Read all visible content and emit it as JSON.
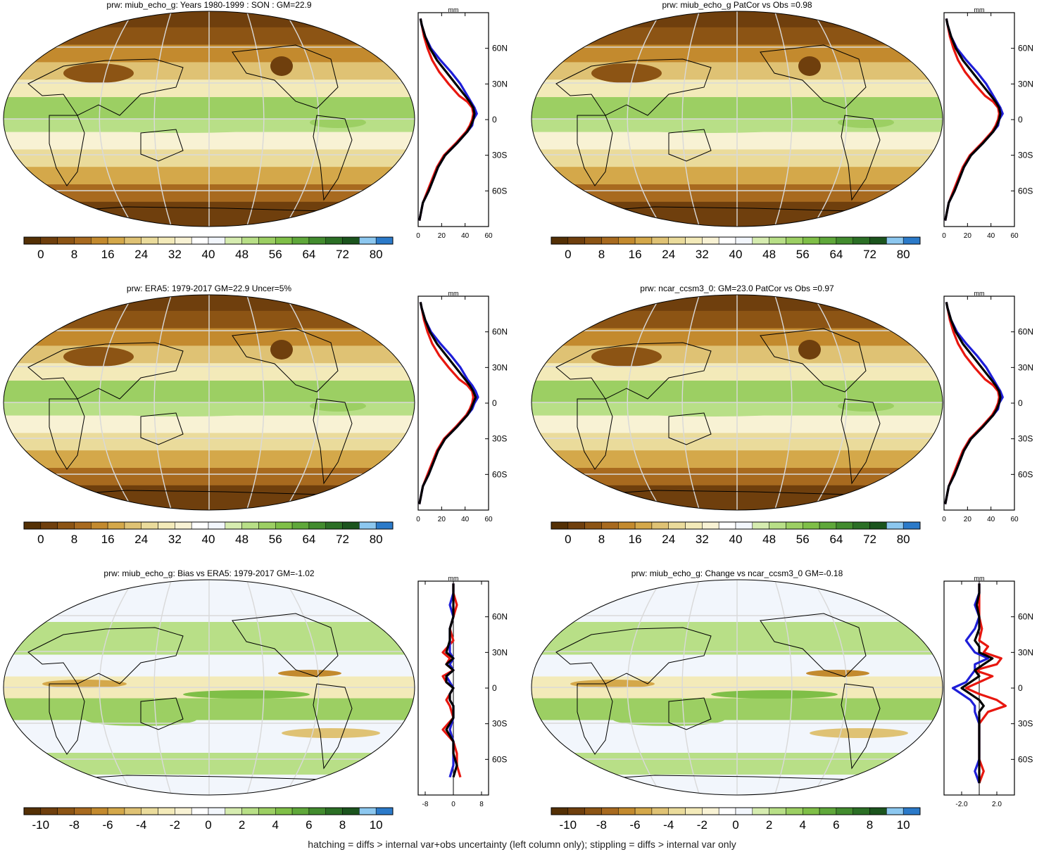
{
  "palette": {
    "precip": [
      "#543005",
      "#6f3f0d",
      "#8c5414",
      "#a86a1f",
      "#c38a2e",
      "#d4a84a",
      "#dfc274",
      "#eadb9b",
      "#f3eab9",
      "#f8f2d4",
      "#ffffff",
      "#f2f6fc",
      "#d6ecb0",
      "#b8df87",
      "#9ccf63",
      "#7fbf47",
      "#5fa83a",
      "#428c2e",
      "#2b6f25",
      "#1b541d",
      "#8cc7ef",
      "#2b7ac9"
    ],
    "outline": "#000000",
    "graticule": "#d9d9d9"
  },
  "colorbar_ticks_field": [
    "0",
    "8",
    "16",
    "24",
    "32",
    "40",
    "48",
    "56",
    "64",
    "72",
    "80"
  ],
  "colorbar_ticks_diff": [
    "-10",
    "-8",
    "-6",
    "-4",
    "-2",
    "0",
    "2",
    "4",
    "6",
    "8",
    "10"
  ],
  "zonal_units": "mm",
  "zonal_lat_labels": [
    "60N",
    "30N",
    "0",
    "30S",
    "60S"
  ],
  "zonal_x_ticks_field": [
    "0",
    "20",
    "40",
    "60"
  ],
  "zonal_x_ticks_bias": [
    "-8",
    "0",
    "8"
  ],
  "zonal_x_ticks_change": [
    "-2.0",
    "2.0"
  ],
  "titles": {
    "p1": "prw: miub_echo_g: Years 1980-1999 : SON : GM=22.9",
    "p2": "prw: miub_echo_g PatCor vs Obs =0.98",
    "p3": "prw: ERA5: 1979-2017 GM=22.9 Uncer=5%",
    "p4": "prw: ncar_ccsm3_0: GM=23.0 PatCor vs Obs =0.97",
    "p5": "prw: miub_echo_g: Bias vs ERA5: 1979-2017  GM=-1.02",
    "p6": "prw: miub_echo_g: Change vs ncar_ccsm3_0 GM=-0.18"
  },
  "footer": "hatching = diffs > internal var+obs uncertainty (left column only); stippling = diffs > internal var only",
  "chart_data": [
    {
      "type": "line",
      "panel": "miub_echo_g SON zonal mean",
      "xlabel": "mm",
      "xlim": [
        0,
        60
      ],
      "ylim": [
        -90,
        90
      ],
      "x_ticks": [
        "0",
        "20",
        "40",
        "60"
      ],
      "y_ticks": [
        "60N",
        "30N",
        "0",
        "30S",
        "60S"
      ],
      "lat": [
        -85,
        -70,
        -60,
        -50,
        -40,
        -30,
        -20,
        -10,
        -5,
        0,
        5,
        10,
        15,
        20,
        30,
        40,
        50,
        60,
        70,
        80,
        85
      ],
      "series": [
        {
          "color": "#e8170f",
          "values": [
            1,
            4,
            8,
            12,
            16,
            22,
            32,
            41,
            44,
            46,
            47,
            46,
            42,
            35,
            26,
            18,
            12,
            8,
            5,
            3,
            2
          ]
        },
        {
          "color": "#1e1ed8",
          "values": [
            1,
            4,
            9,
            13,
            17,
            23,
            33,
            42,
            46,
            47,
            50,
            48,
            45,
            42,
            36,
            28,
            19,
            11,
            6,
            3,
            2
          ]
        },
        {
          "color": "#000000",
          "values": [
            1,
            4,
            9,
            13,
            17,
            23,
            33,
            42,
            45,
            47,
            48,
            47,
            44,
            40,
            32,
            24,
            16,
            10,
            6,
            3,
            2
          ]
        }
      ]
    },
    {
      "type": "line",
      "panel": "miub_echo_g PatCor zonal mean",
      "xlabel": "mm",
      "xlim": [
        0,
        60
      ],
      "ylim": [
        -90,
        90
      ],
      "x_ticks": [
        "0",
        "20",
        "40",
        "60"
      ],
      "y_ticks": [
        "60N",
        "30N",
        "0",
        "30S",
        "60S"
      ],
      "lat": [
        -85,
        -70,
        -60,
        -50,
        -40,
        -30,
        -20,
        -10,
        -5,
        0,
        5,
        10,
        15,
        20,
        30,
        40,
        50,
        60,
        70,
        80,
        85
      ],
      "series": [
        {
          "color": "#e8170f",
          "values": [
            1,
            4,
            8,
            12,
            16,
            22,
            32,
            41,
            44,
            46,
            47,
            46,
            42,
            35,
            26,
            18,
            12,
            8,
            5,
            3,
            2
          ]
        },
        {
          "color": "#1e1ed8",
          "values": [
            1,
            4,
            9,
            13,
            17,
            23,
            33,
            42,
            46,
            47,
            50,
            48,
            45,
            42,
            36,
            28,
            19,
            11,
            6,
            3,
            2
          ]
        },
        {
          "color": "#000000",
          "values": [
            1,
            4,
            9,
            13,
            17,
            23,
            33,
            42,
            45,
            47,
            48,
            47,
            44,
            40,
            32,
            24,
            16,
            10,
            6,
            3,
            2
          ]
        }
      ]
    },
    {
      "type": "line",
      "panel": "ERA5 zonal mean",
      "xlabel": "mm",
      "xlim": [
        0,
        60
      ],
      "ylim": [
        -90,
        90
      ],
      "x_ticks": [
        "0",
        "20",
        "40",
        "60"
      ],
      "y_ticks": [
        "60N",
        "30N",
        "0",
        "30S",
        "60S"
      ],
      "lat": [
        -85,
        -70,
        -60,
        -50,
        -40,
        -30,
        -20,
        -10,
        -5,
        0,
        5,
        10,
        15,
        20,
        30,
        40,
        50,
        60,
        70,
        80,
        85
      ],
      "series": [
        {
          "color": "#e8170f",
          "values": [
            1,
            4,
            8,
            12,
            16,
            22,
            32,
            41,
            44,
            46,
            47,
            46,
            42,
            35,
            26,
            18,
            12,
            8,
            5,
            3,
            2
          ]
        },
        {
          "color": "#1e1ed8",
          "values": [
            1,
            4,
            9,
            13,
            17,
            23,
            33,
            42,
            46,
            48,
            51,
            49,
            46,
            42,
            36,
            28,
            19,
            11,
            6,
            3,
            2
          ]
        },
        {
          "color": "#000000",
          "values": [
            1,
            4,
            9,
            13,
            17,
            23,
            33,
            42,
            45,
            47,
            49,
            47,
            44,
            40,
            32,
            24,
            16,
            10,
            6,
            3,
            2
          ]
        }
      ]
    },
    {
      "type": "line",
      "panel": "ncar_ccsm3_0 zonal mean",
      "xlabel": "mm",
      "xlim": [
        0,
        60
      ],
      "ylim": [
        -90,
        90
      ],
      "x_ticks": [
        "0",
        "20",
        "40",
        "60"
      ],
      "y_ticks": [
        "60N",
        "30N",
        "0",
        "30S",
        "60S"
      ],
      "lat": [
        -85,
        -70,
        -60,
        -50,
        -40,
        -30,
        -20,
        -10,
        -5,
        0,
        5,
        10,
        15,
        20,
        30,
        40,
        50,
        60,
        70,
        80,
        85
      ],
      "series": [
        {
          "color": "#e8170f",
          "values": [
            1,
            4,
            8,
            12,
            16,
            22,
            32,
            41,
            44,
            46,
            47,
            46,
            42,
            35,
            26,
            18,
            12,
            8,
            5,
            3,
            2
          ]
        },
        {
          "color": "#1e1ed8",
          "values": [
            1,
            4,
            9,
            13,
            17,
            23,
            33,
            42,
            46,
            47,
            50,
            48,
            45,
            42,
            36,
            28,
            19,
            11,
            6,
            3,
            2
          ]
        },
        {
          "color": "#000000",
          "values": [
            1,
            4,
            9,
            13,
            17,
            23,
            33,
            42,
            45,
            47,
            48,
            47,
            44,
            40,
            32,
            24,
            16,
            10,
            6,
            3,
            2
          ]
        }
      ]
    },
    {
      "type": "line",
      "panel": "Bias vs ERA5 zonal mean",
      "xlabel": "mm",
      "xlim": [
        -10,
        10
      ],
      "ylim": [
        -90,
        90
      ],
      "x_ticks": [
        "-8",
        "0",
        "8"
      ],
      "y_ticks": [
        "60N",
        "30N",
        "0",
        "30S",
        "60S"
      ],
      "lat": [
        -75,
        -65,
        -55,
        -45,
        -35,
        -25,
        -15,
        -10,
        -5,
        0,
        5,
        10,
        15,
        20,
        25,
        30,
        40,
        50,
        60,
        70,
        80,
        88
      ],
      "series": [
        {
          "color": "#e8170f",
          "values": [
            2,
            1,
            1,
            0,
            -3,
            0,
            -1,
            -2,
            -1,
            0,
            -2,
            -3,
            0,
            -2,
            -1,
            -3,
            0,
            -1,
            0,
            1,
            0,
            0
          ]
        },
        {
          "color": "#1e1ed8",
          "values": [
            -1,
            0,
            0,
            0,
            -1,
            0,
            0,
            -1,
            -1,
            0,
            -1,
            -2,
            0,
            -1,
            0,
            -1,
            -1,
            -1,
            0,
            -1,
            0,
            0
          ]
        },
        {
          "color": "#000000",
          "values": [
            0,
            1,
            0,
            0,
            -2,
            0,
            0,
            -1,
            -1,
            0,
            -2,
            -2,
            0,
            -2,
            0,
            -2,
            -1,
            -1,
            0,
            0,
            0,
            0
          ]
        }
      ]
    },
    {
      "type": "line",
      "panel": "Change vs ncar_ccsm3_0 zonal mean",
      "xlabel": "mm",
      "xlim": [
        -4,
        4
      ],
      "ylim": [
        -90,
        90
      ],
      "x_ticks": [
        "-2.0",
        "2.0"
      ],
      "y_ticks": [
        "60N",
        "30N",
        "0",
        "30S",
        "60S"
      ],
      "lat": [
        -80,
        -70,
        -60,
        -50,
        -40,
        -30,
        -20,
        -15,
        -10,
        -5,
        0,
        5,
        10,
        15,
        20,
        25,
        30,
        35,
        40,
        50,
        60,
        70,
        80,
        88
      ],
      "series": [
        {
          "color": "#e8170f",
          "values": [
            0,
            0.5,
            0,
            0,
            0,
            0,
            1,
            3.0,
            2,
            0,
            -1.5,
            0,
            1.5,
            -0.5,
            2.0,
            2.5,
            0.5,
            1.0,
            0,
            0.3,
            0,
            0,
            0,
            0
          ]
        },
        {
          "color": "#1e1ed8",
          "values": [
            0,
            -0.5,
            0,
            0,
            0,
            0,
            -0.5,
            -0.5,
            -1,
            -2,
            -3.0,
            -1.5,
            -1,
            -0.5,
            -0.5,
            1.0,
            -0.5,
            -1,
            -1.5,
            -0.5,
            0,
            -0.5,
            0,
            0
          ]
        },
        {
          "color": "#000000",
          "values": [
            0,
            0,
            0,
            0,
            0,
            0,
            0,
            0.5,
            0,
            -1,
            -2.0,
            -1,
            0,
            -0.5,
            0.5,
            1.5,
            0,
            0,
            -0.5,
            0,
            0,
            -0.3,
            0,
            0
          ]
        }
      ]
    }
  ]
}
